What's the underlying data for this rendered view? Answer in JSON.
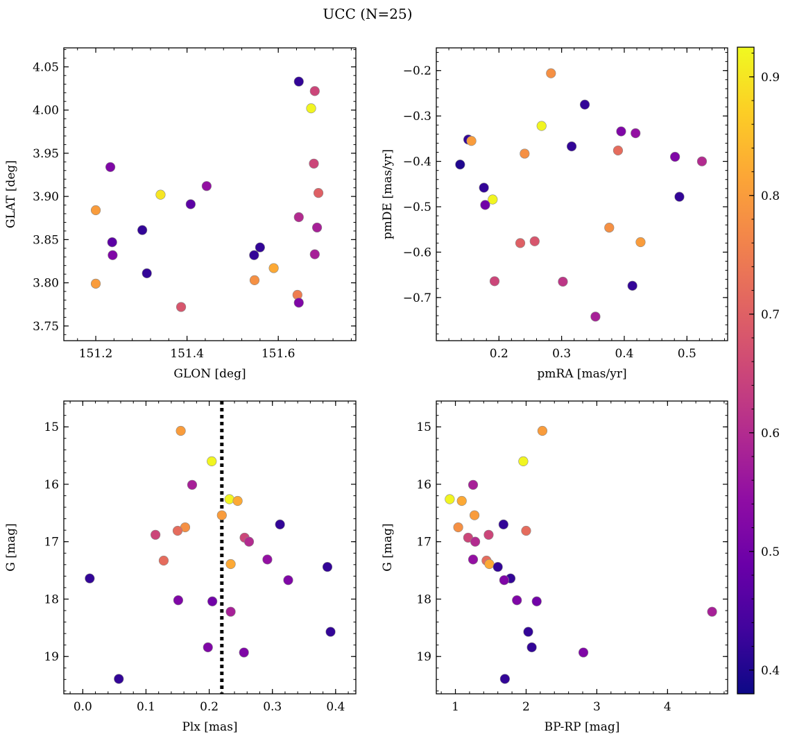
{
  "title": "UCC (N=25)",
  "colorbar": {
    "range": [
      0.38,
      0.925
    ],
    "ticks": [
      0.4,
      0.5,
      0.6,
      0.7,
      0.8,
      0.9
    ],
    "tick_labels": [
      "0.4",
      "0.5",
      "0.6",
      "0.7",
      "0.8",
      "0.9"
    ],
    "colormap": "plasma"
  },
  "chart_data": [
    {
      "type": "scatter",
      "xlabel": "GLON [deg]",
      "ylabel": "GLAT [deg]",
      "xlim": [
        151.13,
        151.77
      ],
      "ylim": [
        3.733,
        4.072
      ],
      "invert_y": false,
      "xticks": [
        151.2,
        151.4,
        151.6
      ],
      "xtick_labels": [
        "151.2",
        "151.4",
        "151.6"
      ],
      "yticks": [
        3.75,
        3.8,
        3.85,
        3.9,
        3.95,
        4.0,
        4.05
      ],
      "ytick_labels": [
        "3.75",
        "3.80",
        "3.85",
        "3.90",
        "3.95",
        "4.00",
        "4.05"
      ],
      "x": [
        151.645,
        151.68,
        151.672,
        151.232,
        151.678,
        151.443,
        151.688,
        151.342,
        151.2,
        151.408,
        151.645,
        151.685,
        151.302,
        151.236,
        151.56,
        151.237,
        151.547,
        151.68,
        151.59,
        151.312,
        151.2,
        151.548,
        151.642,
        151.387,
        151.645
      ],
      "y": [
        4.033,
        4.022,
        4.002,
        3.934,
        3.938,
        3.912,
        3.904,
        3.902,
        3.884,
        3.891,
        3.876,
        3.864,
        3.861,
        3.847,
        3.841,
        3.832,
        3.832,
        3.833,
        3.817,
        3.811,
        3.799,
        3.803,
        3.786,
        3.772,
        3.777
      ],
      "c": [
        0.42,
        0.65,
        0.92,
        0.52,
        0.65,
        0.55,
        0.7,
        0.9,
        0.8,
        0.47,
        0.6,
        0.58,
        0.42,
        0.47,
        0.42,
        0.52,
        0.42,
        0.58,
        0.82,
        0.42,
        0.8,
        0.78,
        0.75,
        0.68,
        0.52
      ]
    },
    {
      "type": "scatter",
      "xlabel": "pmRA [mas/yr]",
      "ylabel": "pmDE [mas/yr]",
      "xlim": [
        0.1,
        0.565
      ],
      "ylim": [
        -0.795,
        -0.15
      ],
      "invert_y": false,
      "xticks": [
        0.2,
        0.3,
        0.4,
        0.5
      ],
      "xtick_labels": [
        "0.2",
        "0.3",
        "0.4",
        "0.5"
      ],
      "yticks": [
        -0.7,
        -0.6,
        -0.5,
        -0.4,
        -0.3,
        -0.2
      ],
      "ytick_labels": [
        "−0.7",
        "−0.6",
        "−0.5",
        "−0.4",
        "−0.3",
        "−0.2"
      ],
      "x": [
        0.283,
        0.337,
        0.268,
        0.395,
        0.418,
        0.316,
        0.151,
        0.156,
        0.241,
        0.39,
        0.138,
        0.524,
        0.481,
        0.176,
        0.488,
        0.19,
        0.178,
        0.376,
        0.426,
        0.257,
        0.234,
        0.193,
        0.302,
        0.413,
        0.354
      ],
      "y": [
        -0.206,
        -0.275,
        -0.322,
        -0.334,
        -0.338,
        -0.367,
        -0.352,
        -0.355,
        -0.383,
        -0.376,
        -0.407,
        -0.4,
        -0.39,
        -0.458,
        -0.478,
        -0.484,
        -0.496,
        -0.546,
        -0.578,
        -0.576,
        -0.58,
        -0.664,
        -0.665,
        -0.674,
        -0.742
      ],
      "c": [
        0.78,
        0.42,
        0.92,
        0.52,
        0.55,
        0.42,
        0.42,
        0.8,
        0.78,
        0.72,
        0.4,
        0.6,
        0.52,
        0.42,
        0.42,
        0.92,
        0.5,
        0.78,
        0.8,
        0.68,
        0.7,
        0.65,
        0.62,
        0.42,
        0.58
      ]
    },
    {
      "type": "scatter",
      "xlabel": "Plx [mas]",
      "ylabel": "G [mag]",
      "xlim": [
        -0.03,
        0.432
      ],
      "ylim": [
        14.55,
        19.65
      ],
      "invert_y": true,
      "vline": 0.22,
      "xticks": [
        0.0,
        0.1,
        0.2,
        0.3,
        0.4
      ],
      "xtick_labels": [
        "0.0",
        "0.1",
        "0.2",
        "0.3",
        "0.4"
      ],
      "yticks": [
        15,
        16,
        17,
        18,
        19
      ],
      "ytick_labels": [
        "15",
        "16",
        "17",
        "18",
        "19"
      ],
      "x": [
        0.155,
        0.204,
        0.173,
        0.232,
        0.245,
        0.22,
        0.312,
        0.162,
        0.15,
        0.115,
        0.256,
        0.263,
        0.128,
        0.234,
        0.292,
        0.387,
        0.325,
        0.011,
        0.151,
        0.205,
        0.234,
        0.392,
        0.198,
        0.255,
        0.057
      ],
      "y": [
        15.07,
        15.6,
        16.01,
        16.26,
        16.29,
        16.54,
        16.7,
        16.75,
        16.81,
        16.88,
        16.93,
        17.0,
        17.33,
        17.39,
        17.31,
        17.44,
        17.67,
        17.64,
        18.02,
        18.04,
        18.22,
        18.57,
        18.84,
        18.93,
        19.39
      ],
      "c": [
        0.8,
        0.92,
        0.58,
        0.92,
        0.82,
        0.8,
        0.42,
        0.78,
        0.72,
        0.65,
        0.65,
        0.6,
        0.72,
        0.82,
        0.55,
        0.42,
        0.52,
        0.42,
        0.52,
        0.5,
        0.58,
        0.42,
        0.52,
        0.52,
        0.42
      ]
    },
    {
      "type": "scatter",
      "xlabel": "BP-RP [mag]",
      "ylabel": "G [mag]",
      "xlim": [
        0.73,
        4.85
      ],
      "ylim": [
        14.55,
        19.65
      ],
      "invert_y": true,
      "xticks": [
        1,
        2,
        3,
        4
      ],
      "xtick_labels": [
        "1",
        "2",
        "3",
        "4"
      ],
      "yticks": [
        15,
        16,
        17,
        18,
        19
      ],
      "ytick_labels": [
        "15",
        "16",
        "17",
        "18",
        "19"
      ],
      "x": [
        2.23,
        1.96,
        0.92,
        1.09,
        1.27,
        1.04,
        1.18,
        1.28,
        1.47,
        2.0,
        1.68,
        1.25,
        1.44,
        1.48,
        1.6,
        1.78,
        1.69,
        1.87,
        2.15,
        4.63,
        2.03,
        2.08,
        2.81,
        1.7,
        1.25
      ],
      "y": [
        15.07,
        15.6,
        16.26,
        16.29,
        16.54,
        16.75,
        16.93,
        17.0,
        16.88,
        16.81,
        16.7,
        16.01,
        17.33,
        17.39,
        17.44,
        17.64,
        17.67,
        18.02,
        18.04,
        18.22,
        18.57,
        18.84,
        18.93,
        19.39,
        17.31
      ],
      "c": [
        0.8,
        0.92,
        0.92,
        0.82,
        0.8,
        0.78,
        0.65,
        0.6,
        0.65,
        0.72,
        0.42,
        0.58,
        0.72,
        0.82,
        0.42,
        0.42,
        0.52,
        0.52,
        0.5,
        0.58,
        0.42,
        0.42,
        0.52,
        0.42,
        0.55
      ]
    }
  ]
}
